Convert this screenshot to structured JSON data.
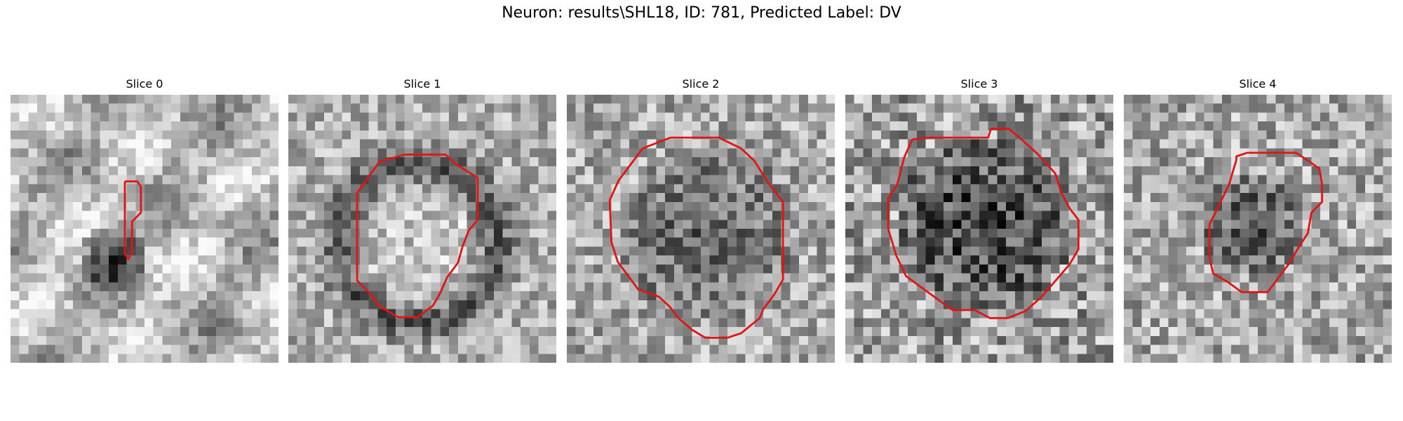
{
  "figure": {
    "title": "Neuron: results\\SHL18, ID: 781, Predicted Label: DV"
  },
  "panels": [
    {
      "label": "Slice 0"
    },
    {
      "label": "Slice 1"
    },
    {
      "label": "Slice 2"
    },
    {
      "label": "Slice 3"
    },
    {
      "label": "Slice 4"
    }
  ],
  "colors": {
    "contour": "#e01515",
    "background": "#ffffff"
  }
}
